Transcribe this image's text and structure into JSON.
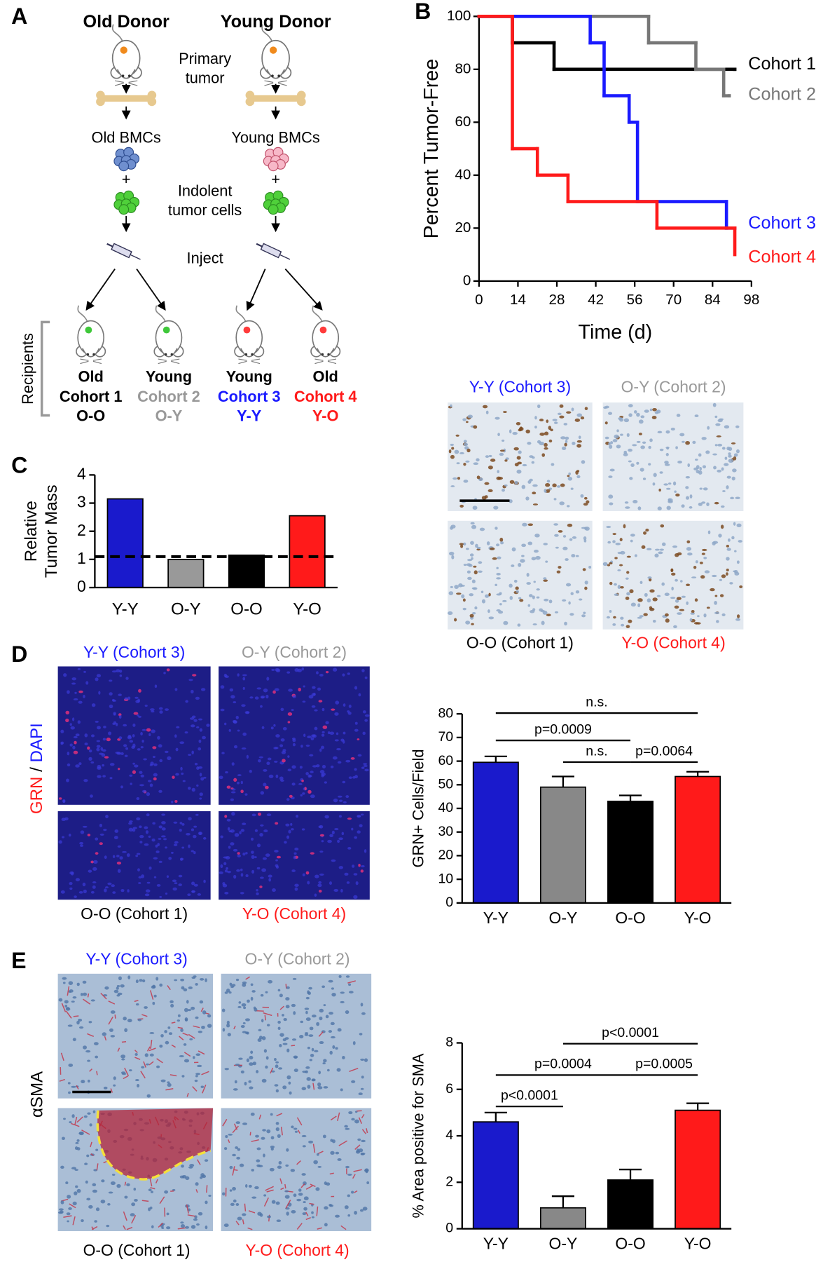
{
  "panel_labels": [
    "A",
    "B",
    "C",
    "D",
    "E"
  ],
  "diagram": {
    "donors": [
      "Old Donor",
      "Young Donor"
    ],
    "primary_tumor": [
      "Primary",
      "tumor"
    ],
    "bmcs": [
      "Old BMCs",
      "Young BMCs"
    ],
    "plus": "+",
    "indolent": [
      "Indolent",
      "tumor cells"
    ],
    "inject": "Inject",
    "recipients_label": "Recipients",
    "recipients": [
      {
        "age": "Old",
        "cohort": "Cohort 1",
        "group": "O-O",
        "color": "#000000"
      },
      {
        "age": "Young",
        "cohort": "Cohort 2",
        "group": "O-Y",
        "color": "#999999"
      },
      {
        "age": "Young",
        "cohort": "Cohort 3",
        "group": "Y-Y",
        "color": "#1a1aff"
      },
      {
        "age": "Old",
        "cohort": "Cohort 4",
        "group": "Y-O",
        "color": "#ff1a1a"
      }
    ]
  },
  "chart_data": [
    {
      "type": "step",
      "xlabel": "Time (d)",
      "ylabel": "Percent Tumor-Free",
      "xlim": [
        0,
        98
      ],
      "ylim": [
        0,
        100
      ],
      "xticks": [
        0,
        14,
        28,
        42,
        56,
        70,
        84,
        98
      ],
      "yticks": [
        0,
        20,
        40,
        60,
        80,
        100
      ],
      "series": [
        {
          "name": "Cohort 1",
          "color": "#000000",
          "x": [
            0,
            12,
            27,
            92
          ],
          "values": [
            100,
            90,
            80,
            80
          ]
        },
        {
          "name": "Cohort 2",
          "color": "#777777",
          "x": [
            0,
            61,
            78,
            88,
            90
          ],
          "values": [
            100,
            90,
            80,
            70,
            70
          ]
        },
        {
          "name": "Cohort 3",
          "color": "#1a1aff",
          "x": [
            0,
            40,
            45,
            54,
            57,
            89,
            92
          ],
          "values": [
            100,
            90,
            70,
            60,
            30,
            20,
            20
          ]
        },
        {
          "name": "Cohort 4",
          "color": "#ff1a1a",
          "x": [
            0,
            12,
            21,
            32,
            64,
            92
          ],
          "values": [
            100,
            50,
            40,
            30,
            20,
            10
          ]
        }
      ]
    },
    {
      "type": "bar",
      "ylabel": [
        "Relative",
        "Tumor Mass"
      ],
      "categories": [
        "Y-Y",
        "O-Y",
        "O-O",
        "Y-O"
      ],
      "values": [
        3.15,
        1.0,
        1.15,
        2.55
      ],
      "colors": [
        "#1a1acc",
        "#999999",
        "#000000",
        "#ff1a1a"
      ],
      "ylim": [
        0,
        4
      ],
      "yticks": [
        0,
        1,
        2,
        3,
        4
      ],
      "reference_line": 1.1
    },
    {
      "type": "bar",
      "ylabel": "GRN+ Cells/Field",
      "categories": [
        "Y-Y",
        "O-Y",
        "O-O",
        "Y-O"
      ],
      "values": [
        59.5,
        49,
        43,
        53.5
      ],
      "errors": [
        2.5,
        4.5,
        2.5,
        2
      ],
      "colors": [
        "#1a1acc",
        "#888888",
        "#000000",
        "#ff1a1a"
      ],
      "ylim": [
        0,
        80
      ],
      "yticks": [
        0,
        10,
        20,
        30,
        40,
        50,
        60,
        70,
        80
      ],
      "comparisons": [
        {
          "label": "n.s.",
          "from": "Y-Y",
          "to": "Y-O"
        },
        {
          "label": "p=0.0009",
          "from": "Y-Y",
          "to": "O-O"
        },
        {
          "label": "n.s.",
          "from": "O-Y",
          "to": "O-O"
        },
        {
          "label": "p=0.0064",
          "from": "O-O",
          "to": "Y-O"
        }
      ]
    },
    {
      "type": "bar",
      "ylabel": "% Area positive for SMA",
      "categories": [
        "Y-Y",
        "O-Y",
        "O-O",
        "Y-O"
      ],
      "values": [
        4.6,
        0.9,
        2.1,
        5.1
      ],
      "errors": [
        0.4,
        0.5,
        0.45,
        0.3
      ],
      "colors": [
        "#1a1acc",
        "#888888",
        "#000000",
        "#ff1a1a"
      ],
      "ylim": [
        0,
        8
      ],
      "yticks": [
        0,
        2,
        4,
        6,
        8
      ],
      "comparisons": [
        {
          "label": "p<0.0001",
          "from": "O-Y",
          "to": "Y-O"
        },
        {
          "label": "p=0.0004",
          "from": "Y-Y",
          "to": "O-O"
        },
        {
          "label": "p=0.0005",
          "from": "O-O",
          "to": "Y-O"
        },
        {
          "label": "p<0.0001",
          "from": "Y-Y",
          "to": "O-Y"
        }
      ]
    }
  ],
  "micrographs": {
    "labels": [
      {
        "text": "Y-Y (Cohort 3)",
        "color": "#1a1aff"
      },
      {
        "text": "O-Y (Cohort 2)",
        "color": "#999999"
      },
      {
        "text": "O-O (Cohort 1)",
        "color": "#000000"
      },
      {
        "text": "Y-O (Cohort 4)",
        "color": "#ff1a1a"
      }
    ],
    "grn_stain": [
      {
        "text": "GRN",
        "color": "#ff1a1a"
      },
      {
        "text": "/",
        "color": "#000000"
      },
      {
        "text": "DAPI",
        "color": "#1a1aff"
      }
    ],
    "sma_stain": "αSMA"
  }
}
